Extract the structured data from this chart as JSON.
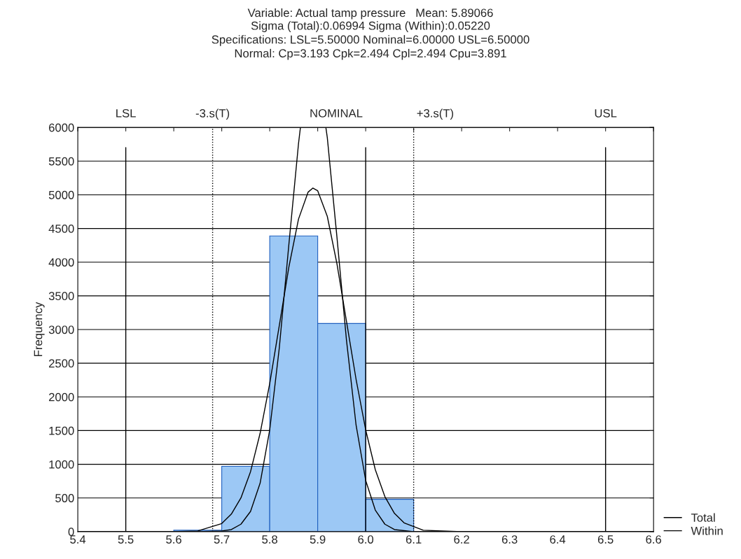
{
  "chart_data": {
    "type": "histogram",
    "title": "Variable: Actual tamp pressure   Mean: 5.89066",
    "subtitle": "Sigma (Total):0.06994 Sigma (Within):0.05220\nSpecifications: LSL=5.50000 Nominal=6.00000 USL=6.50000\nNormal: Cp=3.193 Cpk=2.494 Cpl=2.494 Cpu=3.891",
    "ylabel": "Frequency",
    "bins": [
      5.4,
      5.5,
      5.6,
      5.7,
      5.8,
      5.9,
      6.0,
      6.1,
      6.2,
      6.3,
      6.4,
      6.5,
      6.6
    ],
    "values": [
      0,
      0,
      20,
      970,
      4390,
      3090,
      480,
      0,
      0,
      0,
      0,
      0
    ],
    "color": "#9cc8f5",
    "series": [
      {
        "type": "line",
        "name": "Total",
        "color": "#000000",
        "x": [
          5.4,
          5.6,
          5.65,
          5.7,
          5.72,
          5.74,
          5.76,
          5.78,
          5.8,
          5.82,
          5.84,
          5.86,
          5.88,
          5.89,
          5.9,
          5.92,
          5.94,
          5.96,
          5.98,
          6.0,
          6.02,
          6.04,
          6.06,
          6.08,
          6.12,
          6.2,
          6.6
        ],
        "values": [
          0,
          0,
          10,
          120,
          260,
          500,
          890,
          1460,
          2200,
          3060,
          3930,
          4640,
          5040,
          5100,
          5060,
          4680,
          3980,
          3120,
          2260,
          1510,
          920,
          520,
          270,
          130,
          20,
          0,
          0
        ]
      },
      {
        "type": "line",
        "name": "Within",
        "color": "#000000",
        "x": [
          5.4,
          5.65,
          5.7,
          5.72,
          5.74,
          5.76,
          5.78,
          5.8,
          5.82,
          5.84,
          5.86,
          5.864,
          5.89,
          5.917,
          5.92,
          5.94,
          5.96,
          5.98,
          6.0,
          6.02,
          6.04,
          6.06,
          6.1,
          6.6
        ],
        "values": [
          0,
          0,
          10,
          30,
          110,
          300,
          720,
          1510,
          2730,
          4270,
          5760,
          6000,
          null,
          6000,
          5850,
          4380,
          2840,
          1580,
          760,
          320,
          110,
          30,
          0,
          0
        ]
      }
    ],
    "ref_lines": [
      {
        "axis": "x",
        "value": 5.5,
        "label": "LSL",
        "line_style": "solid"
      },
      {
        "axis": "x",
        "value": 5.681,
        "label": "-3.s(T)",
        "line_style": "dotted"
      },
      {
        "axis": "x",
        "value": 6.0,
        "label": "NOMINAL",
        "line_style": "solid"
      },
      {
        "axis": "x",
        "value": 6.1,
        "label": "+3.s(T)",
        "line_style": "dotted"
      },
      {
        "axis": "x",
        "value": 6.5,
        "label": "USL",
        "line_style": "solid"
      }
    ],
    "xlim": [
      5.4,
      6.6
    ],
    "xticks": [
      5.4,
      5.5,
      5.6,
      5.7,
      5.8,
      5.9,
      {
        "value": 6,
        "label": "6.0"
      },
      6.1,
      6.2,
      6.3,
      6.4,
      6.5,
      6.6
    ],
    "ylim": [
      0,
      6000
    ],
    "yticks": [
      0,
      500,
      1000,
      1500,
      2000,
      2500,
      3000,
      3500,
      4000,
      4500,
      5000,
      5500,
      6000
    ],
    "grid": "y",
    "legend": "bottom right"
  }
}
